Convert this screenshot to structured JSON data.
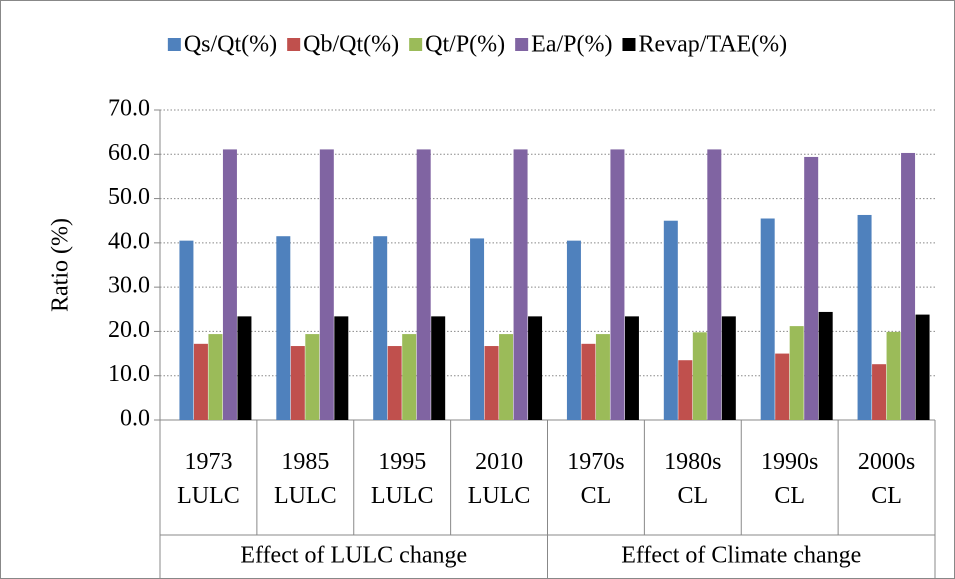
{
  "chart_data": {
    "type": "bar",
    "y_label": "Ratio (%)",
    "categories": [
      "1973 LULC",
      "1985 LULC",
      "1995 LULC",
      "2010 LULC",
      "1970s CL",
      "1980s CL",
      "1990s CL",
      "2000s CL"
    ],
    "group_labels": [
      "Effect of LULC change",
      "Effect of Climate change"
    ],
    "series": [
      {
        "name": "Qs/Qt(%)",
        "color": "#4f81bd",
        "values": [
          40.5,
          41.5,
          41.5,
          41.0,
          40.5,
          45.0,
          45.5,
          46.3
        ]
      },
      {
        "name": "Qb/Qt(%)",
        "color": "#c0504d",
        "values": [
          17.2,
          16.7,
          16.7,
          16.7,
          17.2,
          13.5,
          15.0,
          12.6
        ]
      },
      {
        "name": "Qt/P(%)",
        "color": "#9bbb59",
        "values": [
          19.4,
          19.4,
          19.4,
          19.4,
          19.4,
          19.8,
          21.2,
          19.9
        ]
      },
      {
        "name": "Ea/P(%)",
        "color": "#8064a2",
        "values": [
          61.1,
          61.1,
          61.1,
          61.1,
          61.1,
          61.1,
          59.4,
          60.3
        ]
      },
      {
        "name": "Revap/TAE(%)",
        "color": "#000000",
        "values": [
          23.4,
          23.4,
          23.4,
          23.4,
          23.4,
          23.4,
          24.4,
          23.8
        ]
      }
    ],
    "ylim": [
      0,
      70
    ],
    "yticks": [
      {
        "value": 0,
        "label": "0.0"
      },
      {
        "value": 10,
        "label": "10.0"
      },
      {
        "value": 20,
        "label": "20.0"
      },
      {
        "value": 30,
        "label": "30.0"
      },
      {
        "value": 40,
        "label": "40.0"
      },
      {
        "value": 50,
        "label": "50.0"
      },
      {
        "value": 60,
        "label": "60.0"
      },
      {
        "value": 70,
        "label": "70.0"
      }
    ],
    "grid": true,
    "legend": "top"
  }
}
